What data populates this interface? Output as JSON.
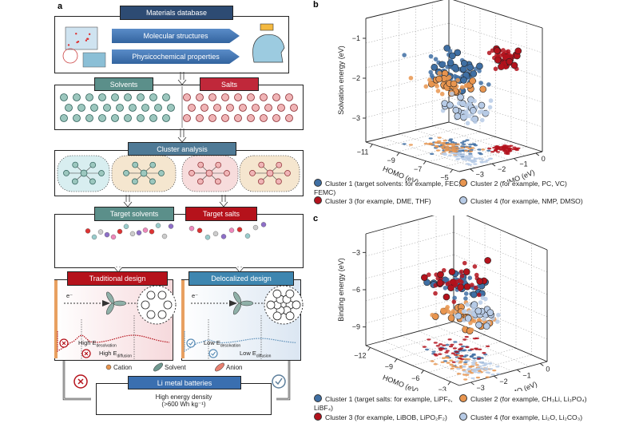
{
  "panel_a": {
    "label": "a",
    "materials_database": "Materials database",
    "molecular_structures": "Molecular structures",
    "physicochemical_properties": "Physicochemical properties",
    "solvents": "Solvents",
    "salts": "Salts",
    "cluster_analysis": "Cluster analysis",
    "target_solvents": "Target solvents",
    "target_salts": "Target salts",
    "traditional_design": "Traditional design",
    "delocalized_design": "Delocalized design",
    "electron": "e⁻",
    "high_desolvation": "High E",
    "high_desolvation_sub": "desolvation",
    "high_diffusion": "High E",
    "high_diffusion_sub": "diffusion",
    "low_desolvation": "Low E",
    "low_desolvation_sub": "desolvation",
    "low_diffusion": "Low E",
    "low_diffusion_sub": "diffusion",
    "legend": {
      "cation": "Cation",
      "solvent": "Solvent",
      "anion": "Anion"
    },
    "li_metal_batteries": "Li metal batteries",
    "high_energy_density": "High energy density",
    "energy_value": "(>600 Wh kg⁻¹)",
    "colors": {
      "database": "#2d4b73",
      "arrow_banner": "#3f73b0",
      "solvent": "#5b8f8a",
      "salt": "#c0283a",
      "cluster": "#4f7a96",
      "delocalized": "#3e86b0"
    }
  },
  "chart_data": [
    {
      "panel": "b",
      "type": "scatter",
      "projection": "3d",
      "xlabel": "HOMO (eV)",
      "xticks": [
        "-11",
        "-9",
        "-7",
        "-5"
      ],
      "xlim": [
        -11.5,
        -4.5
      ],
      "ylabel": "LUMO (eV)",
      "yticks": [
        "-3",
        "-2",
        "-1",
        "0"
      ],
      "ylim": [
        -3.5,
        0.3
      ],
      "zlabel": "Solvation energy (eV)",
      "zticks": [
        "-3",
        "-2",
        "-1"
      ],
      "zlim": [
        -3.6,
        -0.5
      ],
      "grid": true,
      "legend_position": "bottom",
      "series": [
        {
          "name": "Cluster 1 (target solvents: for example, FEC, FEMC)",
          "color": "#3f6fa3"
        },
        {
          "name": "Cluster 2 (for example, PC, VC)",
          "color": "#e8954f"
        },
        {
          "name": "Cluster 3 (for example, DME, THF)",
          "color": "#b3121c"
        },
        {
          "name": "Cluster 4 (for example, NMP, DMSO)",
          "color": "#b7cbe6"
        }
      ]
    },
    {
      "panel": "c",
      "type": "scatter",
      "projection": "3d",
      "xlabel": "HOMO (eV)",
      "xticks": [
        "-12",
        "-9",
        "-6",
        "-3"
      ],
      "xlim": [
        -12.5,
        -2
      ],
      "ylabel": "LUMO (eV)",
      "yticks": [
        "-3",
        "-2",
        "-1",
        "0"
      ],
      "ylim": [
        -3.5,
        0.3
      ],
      "zlabel": "Binding energy (eV)",
      "zticks": [
        "-3",
        "-6",
        "-9"
      ],
      "zlim": [
        -10.5,
        -1.5
      ],
      "grid": true,
      "legend_position": "bottom",
      "series": [
        {
          "name": "Cluster 1 (target salts: for example, LiPF₆, LiBF₄)",
          "color": "#3f6fa3"
        },
        {
          "name": "Cluster 2 (for example, CH₃Li, Li₃PO₄)",
          "color": "#e8954f"
        },
        {
          "name": "Cluster 3 (for example, LiBOB, LiPO₂F₂)",
          "color": "#b3121c"
        },
        {
          "name": "Cluster 4 (for example, Li₂O, Li₂CO₃)",
          "color": "#b7cbe6"
        }
      ]
    }
  ]
}
